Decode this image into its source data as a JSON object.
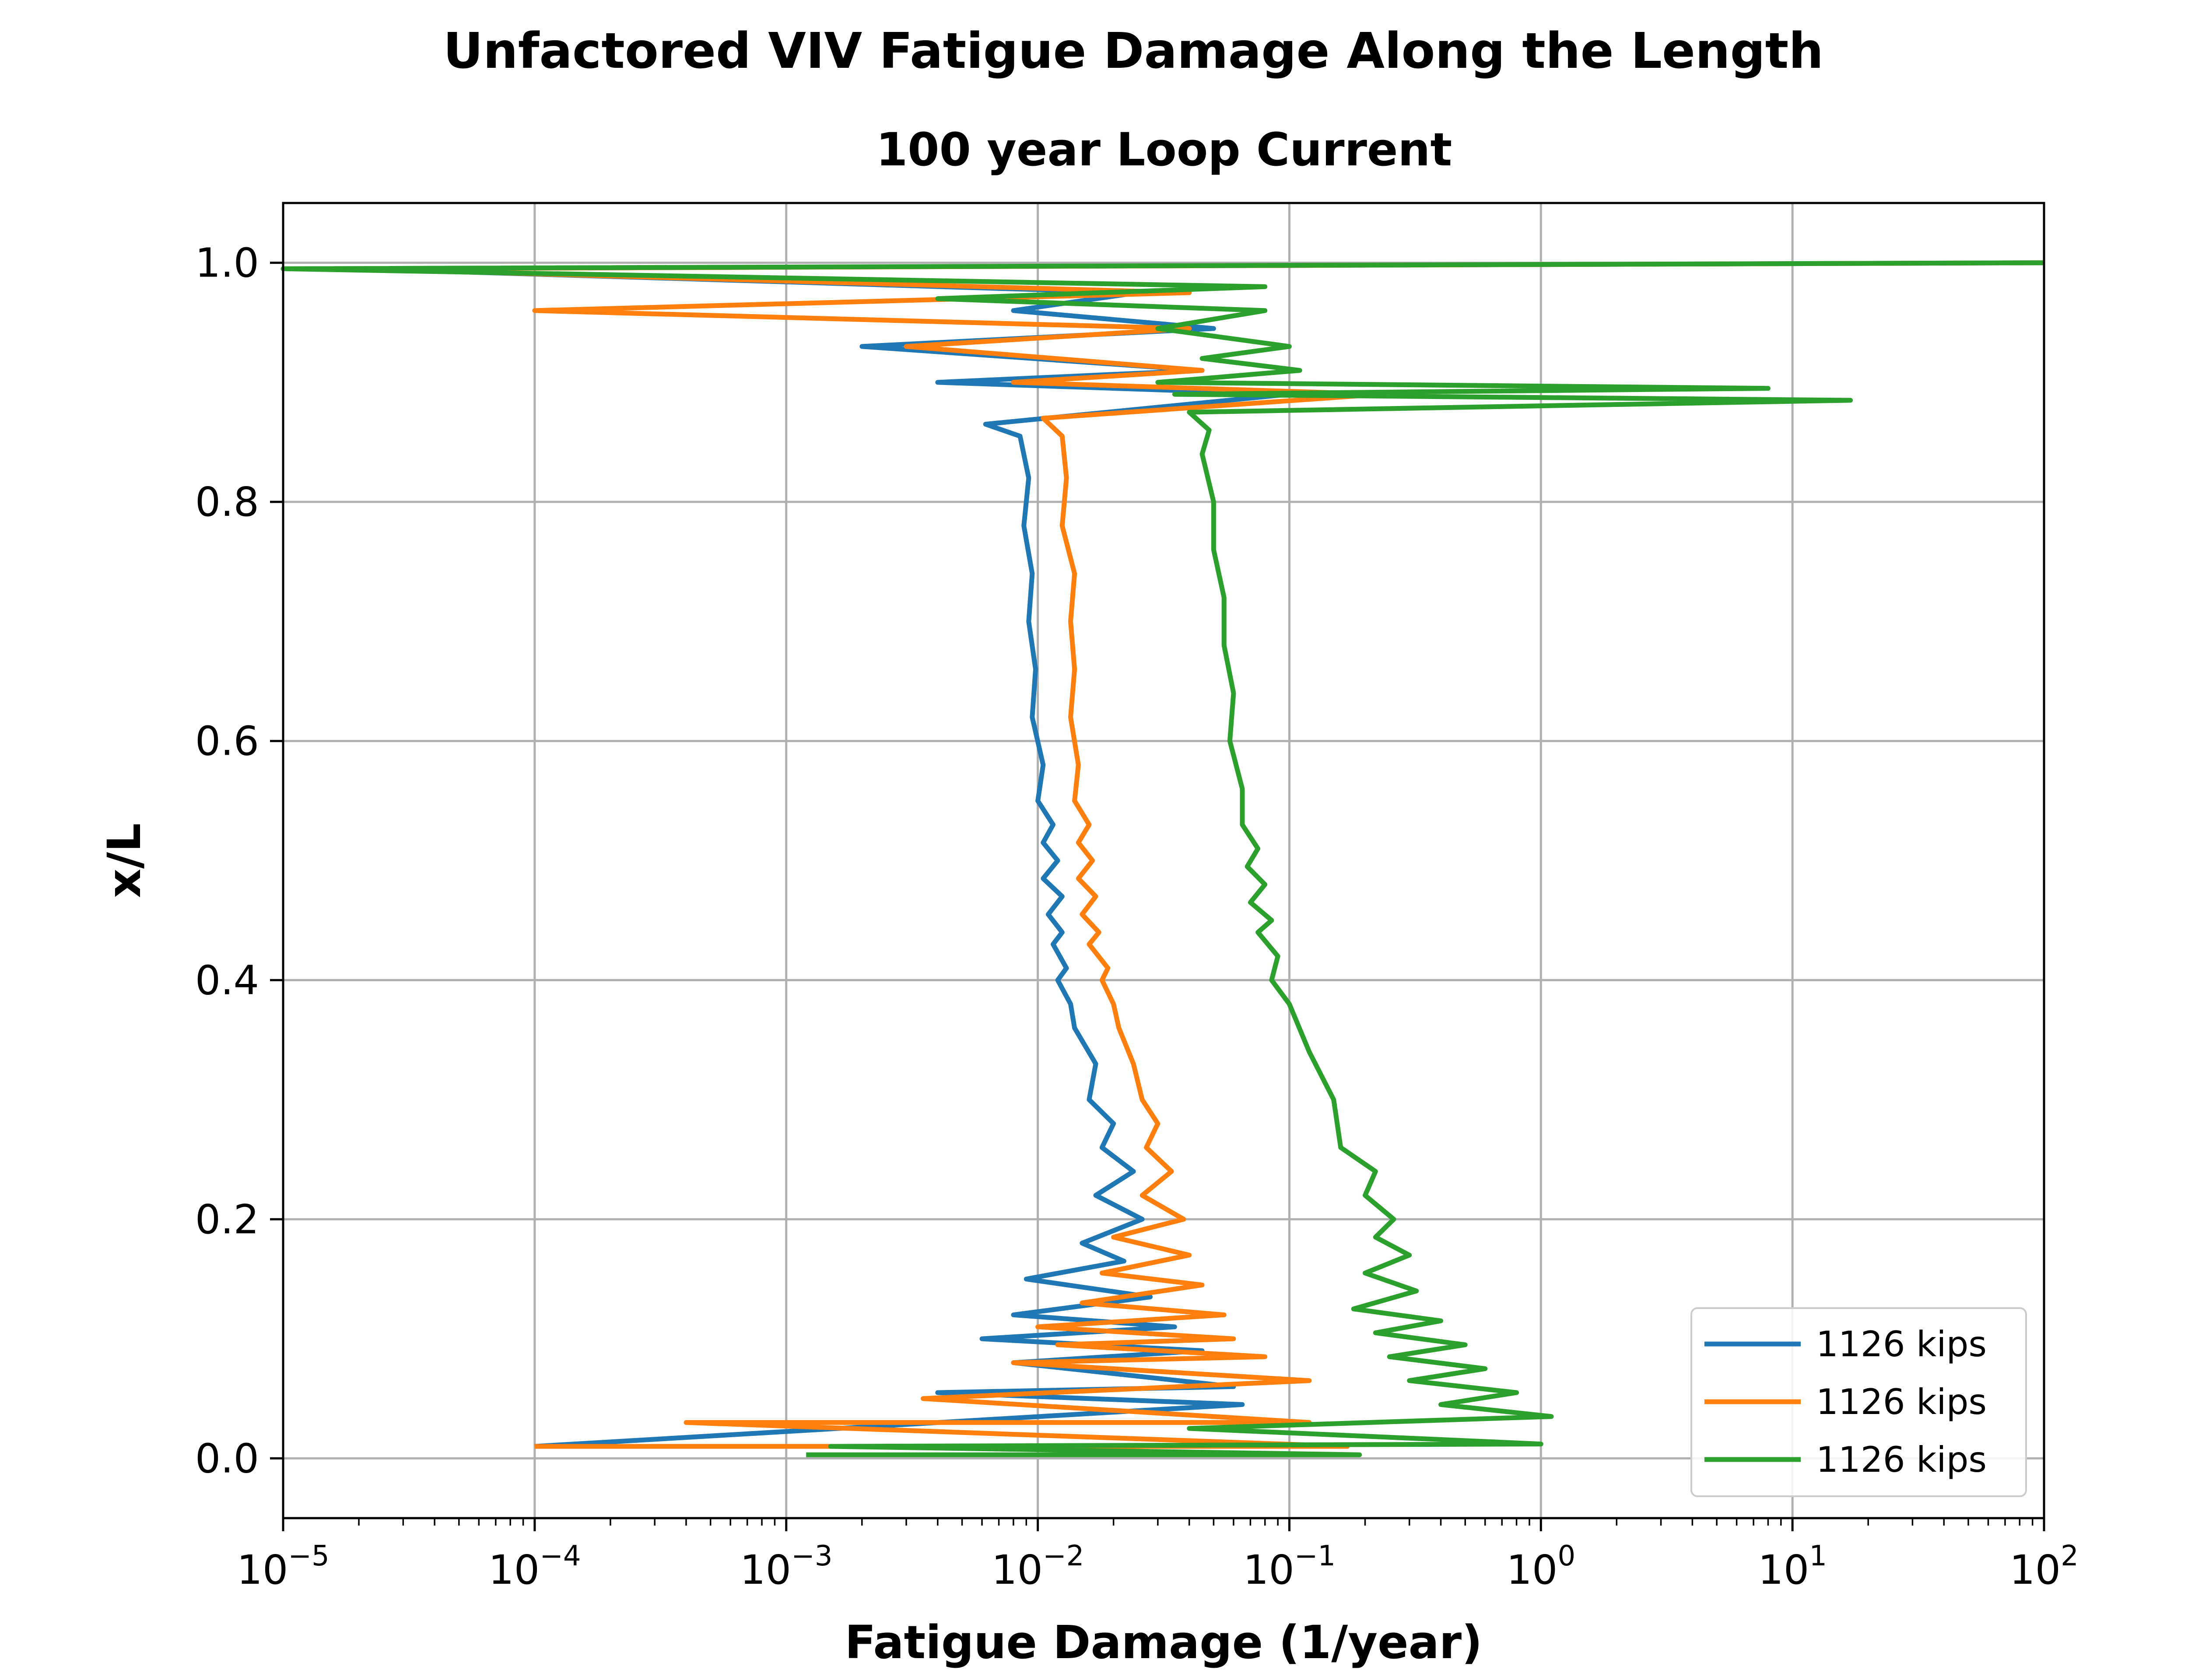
{
  "chart_data": {
    "type": "line",
    "title": "Unfactored VIV Fatigue Damage Along the Length",
    "subtitle": "100 year Loop Current",
    "xlabel": "Fatigue Damage (1/year)",
    "ylabel": "x/L",
    "xscale": "log",
    "xlim": [
      1e-05,
      100
    ],
    "ylim": [
      -0.05,
      1.05
    ],
    "grid": true,
    "legend_position": "lower-right",
    "x_ticks": [
      {
        "value": 1e-05,
        "base": "10",
        "exp": "−5"
      },
      {
        "value": 0.0001,
        "base": "10",
        "exp": "−4"
      },
      {
        "value": 0.001,
        "base": "10",
        "exp": "−3"
      },
      {
        "value": 0.01,
        "base": "10",
        "exp": "−2"
      },
      {
        "value": 0.1,
        "base": "10",
        "exp": "−1"
      },
      {
        "value": 1,
        "base": "10",
        "exp": "0"
      },
      {
        "value": 10,
        "base": "10",
        "exp": "1"
      },
      {
        "value": 100,
        "base": "10",
        "exp": "2"
      }
    ],
    "y_ticks": [
      {
        "value": 0.0,
        "label": "0.0"
      },
      {
        "value": 0.2,
        "label": "0.2"
      },
      {
        "value": 0.4,
        "label": "0.4"
      },
      {
        "value": 0.6,
        "label": "0.6"
      },
      {
        "value": 0.8,
        "label": "0.8"
      },
      {
        "value": 1.0,
        "label": "1.0"
      }
    ],
    "series": [
      {
        "name": "1126 kips",
        "color": "#1f77b4",
        "points": [
          [
            0.0001,
            0.01
          ],
          [
            0.065,
            0.045
          ],
          [
            0.004,
            0.055
          ],
          [
            0.06,
            0.06
          ],
          [
            0.008,
            0.08
          ],
          [
            0.045,
            0.09
          ],
          [
            0.006,
            0.1
          ],
          [
            0.035,
            0.11
          ],
          [
            0.008,
            0.12
          ],
          [
            0.028,
            0.135
          ],
          [
            0.009,
            0.15
          ],
          [
            0.022,
            0.165
          ],
          [
            0.015,
            0.18
          ],
          [
            0.026,
            0.2
          ],
          [
            0.017,
            0.22
          ],
          [
            0.024,
            0.24
          ],
          [
            0.018,
            0.26
          ],
          [
            0.02,
            0.28
          ],
          [
            0.016,
            0.3
          ],
          [
            0.017,
            0.33
          ],
          [
            0.014,
            0.36
          ],
          [
            0.0135,
            0.38
          ],
          [
            0.012,
            0.4
          ],
          [
            0.013,
            0.41
          ],
          [
            0.0115,
            0.43
          ],
          [
            0.0125,
            0.44
          ],
          [
            0.011,
            0.455
          ],
          [
            0.0125,
            0.47
          ],
          [
            0.0105,
            0.485
          ],
          [
            0.012,
            0.5
          ],
          [
            0.0105,
            0.515
          ],
          [
            0.0115,
            0.53
          ],
          [
            0.01,
            0.55
          ],
          [
            0.0105,
            0.58
          ],
          [
            0.0095,
            0.62
          ],
          [
            0.0098,
            0.66
          ],
          [
            0.0092,
            0.7
          ],
          [
            0.0095,
            0.74
          ],
          [
            0.0088,
            0.78
          ],
          [
            0.0092,
            0.82
          ],
          [
            0.0085,
            0.855
          ],
          [
            0.0062,
            0.865
          ],
          [
            0.1,
            0.89
          ],
          [
            0.004,
            0.9
          ],
          [
            0.045,
            0.91
          ],
          [
            0.002,
            0.93
          ],
          [
            0.05,
            0.945
          ],
          [
            0.008,
            0.96
          ],
          [
            0.025,
            0.975
          ],
          [
            2e-05,
            0.995
          ],
          [
            100,
            1.0
          ]
        ]
      },
      {
        "name": "1126 kips",
        "color": "#ff7f0e",
        "points": [
          [
            0.0001,
            0.01
          ],
          [
            0.17,
            0.01
          ],
          [
            0.0004,
            0.03
          ],
          [
            0.12,
            0.03
          ],
          [
            0.0035,
            0.05
          ],
          [
            0.12,
            0.065
          ],
          [
            0.008,
            0.08
          ],
          [
            0.08,
            0.085
          ],
          [
            0.012,
            0.095
          ],
          [
            0.06,
            0.1
          ],
          [
            0.01,
            0.11
          ],
          [
            0.055,
            0.12
          ],
          [
            0.015,
            0.13
          ],
          [
            0.045,
            0.145
          ],
          [
            0.018,
            0.155
          ],
          [
            0.04,
            0.17
          ],
          [
            0.02,
            0.185
          ],
          [
            0.038,
            0.2
          ],
          [
            0.026,
            0.22
          ],
          [
            0.034,
            0.24
          ],
          [
            0.027,
            0.26
          ],
          [
            0.03,
            0.28
          ],
          [
            0.026,
            0.3
          ],
          [
            0.024,
            0.33
          ],
          [
            0.021,
            0.36
          ],
          [
            0.02,
            0.38
          ],
          [
            0.018,
            0.4
          ],
          [
            0.019,
            0.41
          ],
          [
            0.016,
            0.43
          ],
          [
            0.0175,
            0.44
          ],
          [
            0.015,
            0.455
          ],
          [
            0.017,
            0.47
          ],
          [
            0.0145,
            0.485
          ],
          [
            0.0165,
            0.5
          ],
          [
            0.0145,
            0.515
          ],
          [
            0.016,
            0.53
          ],
          [
            0.014,
            0.55
          ],
          [
            0.0145,
            0.58
          ],
          [
            0.0135,
            0.62
          ],
          [
            0.014,
            0.66
          ],
          [
            0.0135,
            0.7
          ],
          [
            0.014,
            0.74
          ],
          [
            0.0125,
            0.78
          ],
          [
            0.013,
            0.82
          ],
          [
            0.0125,
            0.855
          ],
          [
            0.0105,
            0.87
          ],
          [
            0.23,
            0.89
          ],
          [
            0.008,
            0.9
          ],
          [
            0.045,
            0.91
          ],
          [
            0.003,
            0.93
          ],
          [
            0.04,
            0.945
          ],
          [
            0.0001,
            0.96
          ],
          [
            0.04,
            0.975
          ],
          [
            2e-05,
            0.995
          ],
          [
            100,
            1.0
          ]
        ]
      },
      {
        "name": "1126 kips",
        "color": "#2ca02c",
        "points": [
          [
            0.0012,
            0.003
          ],
          [
            0.19,
            0.003
          ],
          [
            0.0015,
            0.01
          ],
          [
            1.0,
            0.012
          ],
          [
            0.04,
            0.025
          ],
          [
            1.1,
            0.035
          ],
          [
            0.4,
            0.045
          ],
          [
            0.8,
            0.055
          ],
          [
            0.3,
            0.065
          ],
          [
            0.6,
            0.075
          ],
          [
            0.25,
            0.085
          ],
          [
            0.5,
            0.095
          ],
          [
            0.22,
            0.105
          ],
          [
            0.4,
            0.115
          ],
          [
            0.18,
            0.125
          ],
          [
            0.32,
            0.14
          ],
          [
            0.2,
            0.155
          ],
          [
            0.3,
            0.17
          ],
          [
            0.22,
            0.185
          ],
          [
            0.26,
            0.2
          ],
          [
            0.2,
            0.22
          ],
          [
            0.22,
            0.24
          ],
          [
            0.16,
            0.26
          ],
          [
            0.15,
            0.3
          ],
          [
            0.12,
            0.34
          ],
          [
            0.1,
            0.38
          ],
          [
            0.085,
            0.4
          ],
          [
            0.09,
            0.42
          ],
          [
            0.075,
            0.44
          ],
          [
            0.085,
            0.45
          ],
          [
            0.07,
            0.465
          ],
          [
            0.08,
            0.48
          ],
          [
            0.068,
            0.495
          ],
          [
            0.075,
            0.51
          ],
          [
            0.065,
            0.53
          ],
          [
            0.065,
            0.56
          ],
          [
            0.058,
            0.6
          ],
          [
            0.06,
            0.64
          ],
          [
            0.055,
            0.68
          ],
          [
            0.055,
            0.72
          ],
          [
            0.05,
            0.76
          ],
          [
            0.05,
            0.8
          ],
          [
            0.045,
            0.84
          ],
          [
            0.048,
            0.86
          ],
          [
            0.04,
            0.875
          ],
          [
            17,
            0.885
          ],
          [
            0.035,
            0.89
          ],
          [
            8,
            0.895
          ],
          [
            0.03,
            0.9
          ],
          [
            0.11,
            0.91
          ],
          [
            0.045,
            0.92
          ],
          [
            0.1,
            0.93
          ],
          [
            0.03,
            0.945
          ],
          [
            0.08,
            0.96
          ],
          [
            0.004,
            0.97
          ],
          [
            0.08,
            0.98
          ],
          [
            1e-05,
            0.995
          ],
          [
            100,
            1.0
          ]
        ]
      }
    ]
  }
}
